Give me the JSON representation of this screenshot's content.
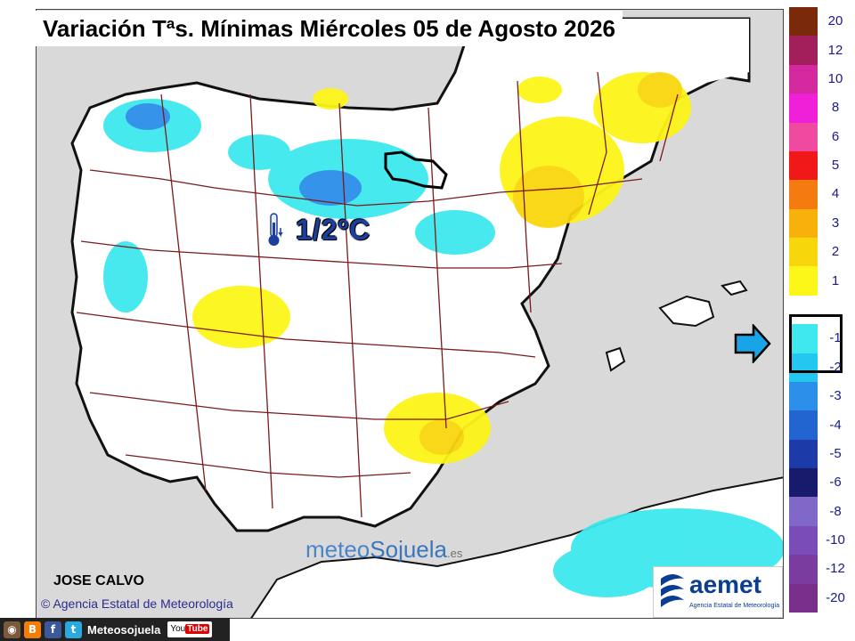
{
  "title": "Variación Tªs. Mínimas Miércoles 05 de Agosto 2026",
  "region_value_label": "1/2ºC",
  "author": "JOSE CALVO",
  "agency_credit": "Agencia Estatal de Meteorología",
  "watermark": {
    "part1": "meteo",
    "part2": "Sojuela",
    "suffix": ".es"
  },
  "aemet_logo": {
    "name": "aemet",
    "subtitle": "Agencia Estatal de Meteorología"
  },
  "social_bar": {
    "handle": "Meteosojuela",
    "youtube": "You",
    "youtube_tube": "Tube",
    "icons": [
      "camera-icon",
      "blogger-icon",
      "facebook-icon",
      "twitter-icon",
      "youtube-icon"
    ]
  },
  "legend": [
    {
      "label": "20",
      "color": "#7a2a0a"
    },
    {
      "label": "12",
      "color": "#a31f5c"
    },
    {
      "label": "10",
      "color": "#d3289e"
    },
    {
      "label": "8",
      "color": "#f020d8"
    },
    {
      "label": "6",
      "color": "#f04aa0"
    },
    {
      "label": "5",
      "color": "#f01818"
    },
    {
      "label": "4",
      "color": "#f57a10"
    },
    {
      "label": "3",
      "color": "#f7b10a"
    },
    {
      "label": "2",
      "color": "#f8d60c"
    },
    {
      "label": "1",
      "color": "#fcf518"
    },
    {
      "label": "",
      "color": "#ffffff"
    },
    {
      "label": "-1",
      "color": "#3de8ee"
    },
    {
      "label": "-2",
      "color": "#23c8f0"
    },
    {
      "label": "-3",
      "color": "#2b8ee8"
    },
    {
      "label": "-4",
      "color": "#2365d0"
    },
    {
      "label": "-5",
      "color": "#1c3aa8"
    },
    {
      "label": "-6",
      "color": "#181a6c"
    },
    {
      "label": "-8",
      "color": "#8068c8"
    },
    {
      "label": "-10",
      "color": "#7a4cb8"
    },
    {
      "label": "-12",
      "color": "#7b3ca0"
    },
    {
      "label": "-20",
      "color": "#7a2f8c"
    }
  ]
}
